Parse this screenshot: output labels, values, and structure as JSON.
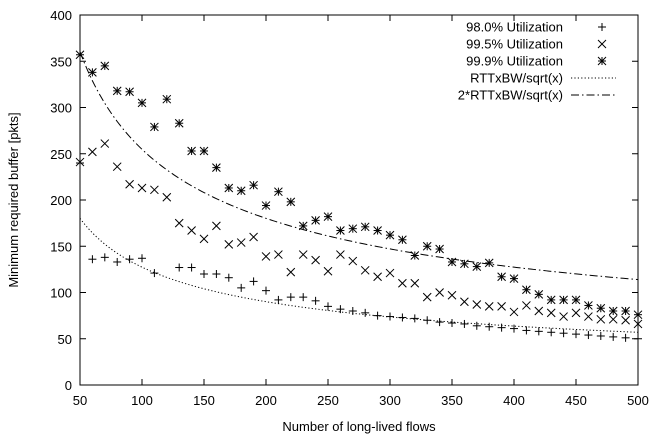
{
  "chart_data": {
    "type": "scatter",
    "title": "",
    "xlabel": "Number of long-lived flows",
    "ylabel": "Minimum required buffer [pkts]",
    "xlim": [
      50,
      500
    ],
    "ylim": [
      0,
      400
    ],
    "xticks": [
      50,
      100,
      150,
      200,
      250,
      300,
      350,
      400,
      450,
      500
    ],
    "yticks": [
      0,
      50,
      100,
      150,
      200,
      250,
      300,
      350,
      400
    ],
    "grid": false,
    "legend_position": "top-right",
    "series": [
      {
        "name": "98.0% Utilization",
        "marker": "plus",
        "points": [
          [
            50,
            240
          ],
          [
            60,
            136
          ],
          [
            70,
            138
          ],
          [
            80,
            133
          ],
          [
            90,
            136
          ],
          [
            100,
            137
          ],
          [
            110,
            121
          ],
          [
            130,
            127
          ],
          [
            140,
            127
          ],
          [
            150,
            120
          ],
          [
            160,
            120
          ],
          [
            170,
            116
          ],
          [
            180,
            105
          ],
          [
            190,
            112
          ],
          [
            200,
            102
          ],
          [
            210,
            92
          ],
          [
            220,
            95
          ],
          [
            230,
            95
          ],
          [
            240,
            91
          ],
          [
            250,
            85
          ],
          [
            260,
            82
          ],
          [
            270,
            80
          ],
          [
            280,
            78
          ],
          [
            290,
            75
          ],
          [
            300,
            74
          ],
          [
            310,
            73
          ],
          [
            320,
            72
          ],
          [
            330,
            70
          ],
          [
            340,
            68
          ],
          [
            350,
            67
          ],
          [
            360,
            66
          ],
          [
            370,
            64
          ],
          [
            380,
            63
          ],
          [
            390,
            62
          ],
          [
            400,
            61
          ],
          [
            410,
            59
          ],
          [
            420,
            58
          ],
          [
            430,
            57
          ],
          [
            440,
            56
          ],
          [
            450,
            55
          ],
          [
            460,
            54
          ],
          [
            470,
            53
          ],
          [
            480,
            52
          ],
          [
            490,
            51
          ],
          [
            500,
            50
          ]
        ]
      },
      {
        "name": "99.5% Utilization",
        "marker": "cross",
        "points": [
          [
            50,
            241
          ],
          [
            60,
            252
          ],
          [
            70,
            261
          ],
          [
            80,
            236
          ],
          [
            90,
            217
          ],
          [
            100,
            213
          ],
          [
            110,
            211
          ],
          [
            120,
            203
          ],
          [
            130,
            175
          ],
          [
            140,
            167
          ],
          [
            150,
            158
          ],
          [
            160,
            172
          ],
          [
            170,
            152
          ],
          [
            180,
            154
          ],
          [
            190,
            160
          ],
          [
            200,
            139
          ],
          [
            210,
            141
          ],
          [
            220,
            122
          ],
          [
            230,
            141
          ],
          [
            240,
            135
          ],
          [
            250,
            123
          ],
          [
            260,
            141
          ],
          [
            270,
            134
          ],
          [
            280,
            124
          ],
          [
            290,
            117
          ],
          [
            300,
            121
          ],
          [
            310,
            110
          ],
          [
            320,
            110
          ],
          [
            330,
            95
          ],
          [
            340,
            100
          ],
          [
            350,
            97
          ],
          [
            360,
            90
          ],
          [
            370,
            87
          ],
          [
            380,
            85
          ],
          [
            390,
            85
          ],
          [
            400,
            79
          ],
          [
            410,
            86
          ],
          [
            420,
            80
          ],
          [
            430,
            78
          ],
          [
            440,
            74
          ],
          [
            450,
            78
          ],
          [
            460,
            74
          ],
          [
            470,
            71
          ],
          [
            480,
            71
          ],
          [
            490,
            70
          ],
          [
            500,
            66
          ]
        ]
      },
      {
        "name": "99.9% Utilization",
        "marker": "star",
        "points": [
          [
            50,
            357
          ],
          [
            60,
            338
          ],
          [
            70,
            345
          ],
          [
            80,
            318
          ],
          [
            90,
            317
          ],
          [
            100,
            305
          ],
          [
            110,
            279
          ],
          [
            120,
            309
          ],
          [
            130,
            283
          ],
          [
            140,
            253
          ],
          [
            150,
            253
          ],
          [
            160,
            235
          ],
          [
            170,
            213
          ],
          [
            180,
            210
          ],
          [
            190,
            216
          ],
          [
            200,
            194
          ],
          [
            210,
            209
          ],
          [
            220,
            198
          ],
          [
            230,
            172
          ],
          [
            240,
            178
          ],
          [
            250,
            182
          ],
          [
            260,
            167
          ],
          [
            270,
            169
          ],
          [
            280,
            171
          ],
          [
            290,
            167
          ],
          [
            300,
            162
          ],
          [
            310,
            157
          ],
          [
            320,
            140
          ],
          [
            330,
            150
          ],
          [
            340,
            147
          ],
          [
            350,
            133
          ],
          [
            360,
            131
          ],
          [
            370,
            128
          ],
          [
            380,
            132
          ],
          [
            390,
            117
          ],
          [
            400,
            115
          ],
          [
            410,
            103
          ],
          [
            420,
            98
          ],
          [
            430,
            92
          ],
          [
            440,
            92
          ],
          [
            450,
            92
          ],
          [
            460,
            86
          ],
          [
            470,
            83
          ],
          [
            480,
            80
          ],
          [
            490,
            80
          ],
          [
            500,
            76
          ]
        ]
      },
      {
        "name": "RTTxBW/sqrt(x)",
        "type": "line",
        "style": "dotted",
        "formula_k": 1274
      },
      {
        "name": "2*RTTxBW/sqrt(x)",
        "type": "line",
        "style": "dashdot",
        "formula_k": 2548
      }
    ]
  }
}
